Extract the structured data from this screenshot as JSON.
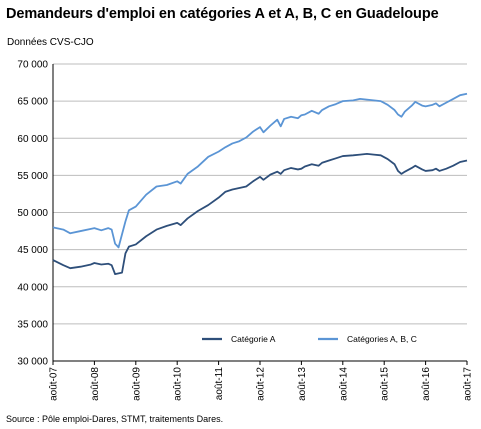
{
  "chart_data": {
    "type": "line",
    "title": "Demandeurs d'emploi en catégories A et A, B, C en Guadeloupe",
    "subtitle": "Données CVS-CJO",
    "source": "Source : Pôle emploi-Dares, STMT, traitements Dares.",
    "y_ticks": [
      "30 000",
      "35 000",
      "40 000",
      "45 000",
      "50 000",
      "55 000",
      "60 000",
      "65 000",
      "70 000"
    ],
    "ylim": [
      30000,
      70000
    ],
    "x_tick_labels": [
      "août-07",
      "août-08",
      "août-09",
      "août-10",
      "août-11",
      "août-12",
      "août-13",
      "août-14",
      "août-15",
      "août-16",
      "août-17"
    ],
    "grid": true,
    "legend_position": "bottom",
    "series": [
      {
        "name": "Catégorie A",
        "color": "#2e4f7a",
        "points": [
          [
            0,
            43600
          ],
          [
            3,
            42900
          ],
          [
            5,
            42500
          ],
          [
            8,
            42700
          ],
          [
            11,
            43000
          ],
          [
            12,
            43200
          ],
          [
            14,
            43000
          ],
          [
            16,
            43100
          ],
          [
            17,
            42900
          ],
          [
            18,
            41700
          ],
          [
            20,
            41900
          ],
          [
            21,
            44500
          ],
          [
            22,
            45400
          ],
          [
            24,
            45700
          ],
          [
            27,
            46800
          ],
          [
            30,
            47700
          ],
          [
            33,
            48200
          ],
          [
            36,
            48600
          ],
          [
            37,
            48300
          ],
          [
            39,
            49200
          ],
          [
            42,
            50200
          ],
          [
            45,
            51000
          ],
          [
            48,
            52000
          ],
          [
            50,
            52800
          ],
          [
            52,
            53100
          ],
          [
            54,
            53300
          ],
          [
            56,
            53500
          ],
          [
            58,
            54200
          ],
          [
            60,
            54800
          ],
          [
            61,
            54400
          ],
          [
            63,
            55100
          ],
          [
            65,
            55500
          ],
          [
            66,
            55200
          ],
          [
            67,
            55700
          ],
          [
            69,
            56000
          ],
          [
            71,
            55800
          ],
          [
            72,
            55900
          ],
          [
            73,
            56200
          ],
          [
            75,
            56500
          ],
          [
            77,
            56300
          ],
          [
            78,
            56700
          ],
          [
            80,
            57000
          ],
          [
            82,
            57300
          ],
          [
            84,
            57600
          ],
          [
            87,
            57700
          ],
          [
            89,
            57800
          ],
          [
            91,
            57900
          ],
          [
            93,
            57800
          ],
          [
            95,
            57700
          ],
          [
            97,
            57200
          ],
          [
            99,
            56500
          ],
          [
            100,
            55600
          ],
          [
            101,
            55200
          ],
          [
            102,
            55500
          ],
          [
            104,
            56000
          ],
          [
            105,
            56300
          ],
          [
            107,
            55800
          ],
          [
            108,
            55600
          ],
          [
            110,
            55700
          ],
          [
            111,
            55900
          ],
          [
            112,
            55600
          ],
          [
            114,
            55900
          ],
          [
            116,
            56300
          ],
          [
            118,
            56800
          ],
          [
            120,
            57000
          ]
        ]
      },
      {
        "name": "Catégories A, B, C",
        "color": "#5b95d5",
        "points": [
          [
            0,
            48000
          ],
          [
            3,
            47700
          ],
          [
            5,
            47200
          ],
          [
            8,
            47500
          ],
          [
            11,
            47800
          ],
          [
            12,
            47900
          ],
          [
            14,
            47600
          ],
          [
            16,
            47900
          ],
          [
            17,
            47700
          ],
          [
            18,
            45800
          ],
          [
            19,
            45300
          ],
          [
            21,
            48800
          ],
          [
            22,
            50300
          ],
          [
            24,
            50800
          ],
          [
            27,
            52400
          ],
          [
            30,
            53500
          ],
          [
            33,
            53700
          ],
          [
            36,
            54200
          ],
          [
            37,
            53900
          ],
          [
            39,
            55200
          ],
          [
            42,
            56200
          ],
          [
            45,
            57500
          ],
          [
            48,
            58200
          ],
          [
            50,
            58800
          ],
          [
            52,
            59300
          ],
          [
            54,
            59600
          ],
          [
            56,
            60100
          ],
          [
            58,
            60900
          ],
          [
            60,
            61500
          ],
          [
            61,
            60800
          ],
          [
            63,
            61700
          ],
          [
            65,
            62500
          ],
          [
            66,
            61600
          ],
          [
            67,
            62600
          ],
          [
            69,
            62900
          ],
          [
            71,
            62700
          ],
          [
            72,
            63100
          ],
          [
            73,
            63200
          ],
          [
            75,
            63700
          ],
          [
            77,
            63300
          ],
          [
            78,
            63800
          ],
          [
            80,
            64300
          ],
          [
            82,
            64600
          ],
          [
            84,
            65000
          ],
          [
            87,
            65100
          ],
          [
            89,
            65300
          ],
          [
            91,
            65200
          ],
          [
            93,
            65100
          ],
          [
            95,
            65000
          ],
          [
            97,
            64500
          ],
          [
            99,
            63800
          ],
          [
            100,
            63200
          ],
          [
            101,
            62900
          ],
          [
            102,
            63600
          ],
          [
            104,
            64400
          ],
          [
            105,
            64900
          ],
          [
            107,
            64400
          ],
          [
            108,
            64300
          ],
          [
            110,
            64500
          ],
          [
            111,
            64700
          ],
          [
            112,
            64300
          ],
          [
            114,
            64800
          ],
          [
            116,
            65300
          ],
          [
            118,
            65800
          ],
          [
            120,
            66000
          ]
        ]
      }
    ]
  }
}
